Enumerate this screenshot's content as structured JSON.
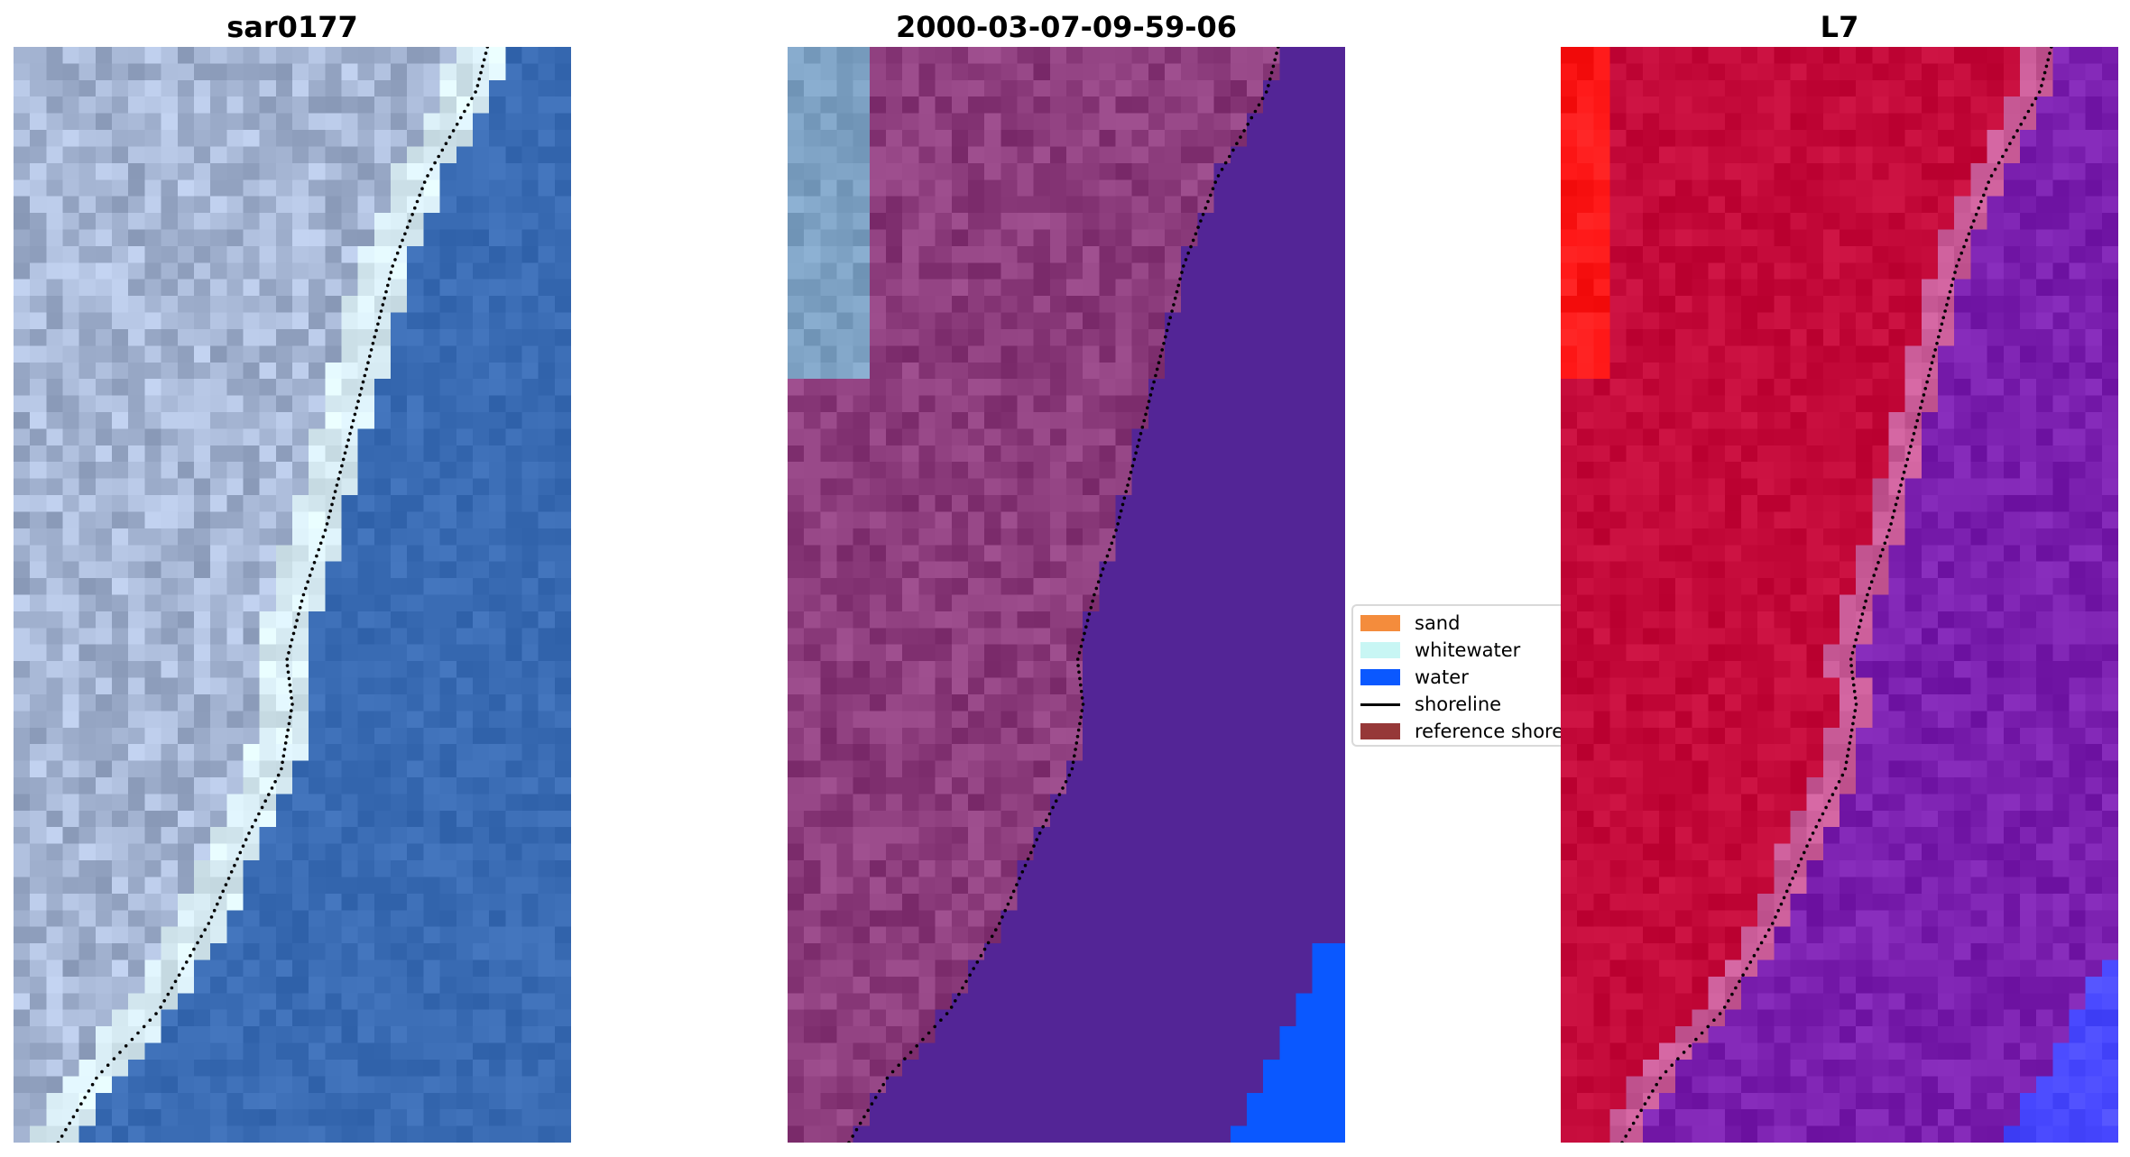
{
  "panels": [
    {
      "title": "sar0177"
    },
    {
      "title": "2000-03-07-09-59-06"
    },
    {
      "title": "L7"
    }
  ],
  "legend": {
    "items": [
      {
        "label": "sand",
        "kind": "patch",
        "color": "#f48c3c"
      },
      {
        "label": "whitewater",
        "kind": "patch",
        "color": "#c8f6f4"
      },
      {
        "label": "water",
        "kind": "patch",
        "color": "#0a58ff"
      },
      {
        "label": "shoreline",
        "kind": "line",
        "color": "#000000"
      },
      {
        "label": "reference shoreline",
        "kind": "patch",
        "color": "#963838"
      }
    ]
  },
  "colors": {
    "rgb_water": "#3a6cb4",
    "rgb_land": "#a6b6d4",
    "rgb_whitewater": "#d8ecf4",
    "classified_land": "#8c3c7c",
    "classified_water": "#532596",
    "classified_water_bright": "#0a58ff",
    "classified_top_left": "#7ea2c4",
    "mndwi_land": "#c40a3a",
    "mndwi_water": "#7a1fae",
    "mndwi_bright_red": "#ff1818",
    "mndwi_bright_blue": "#4848ff"
  }
}
